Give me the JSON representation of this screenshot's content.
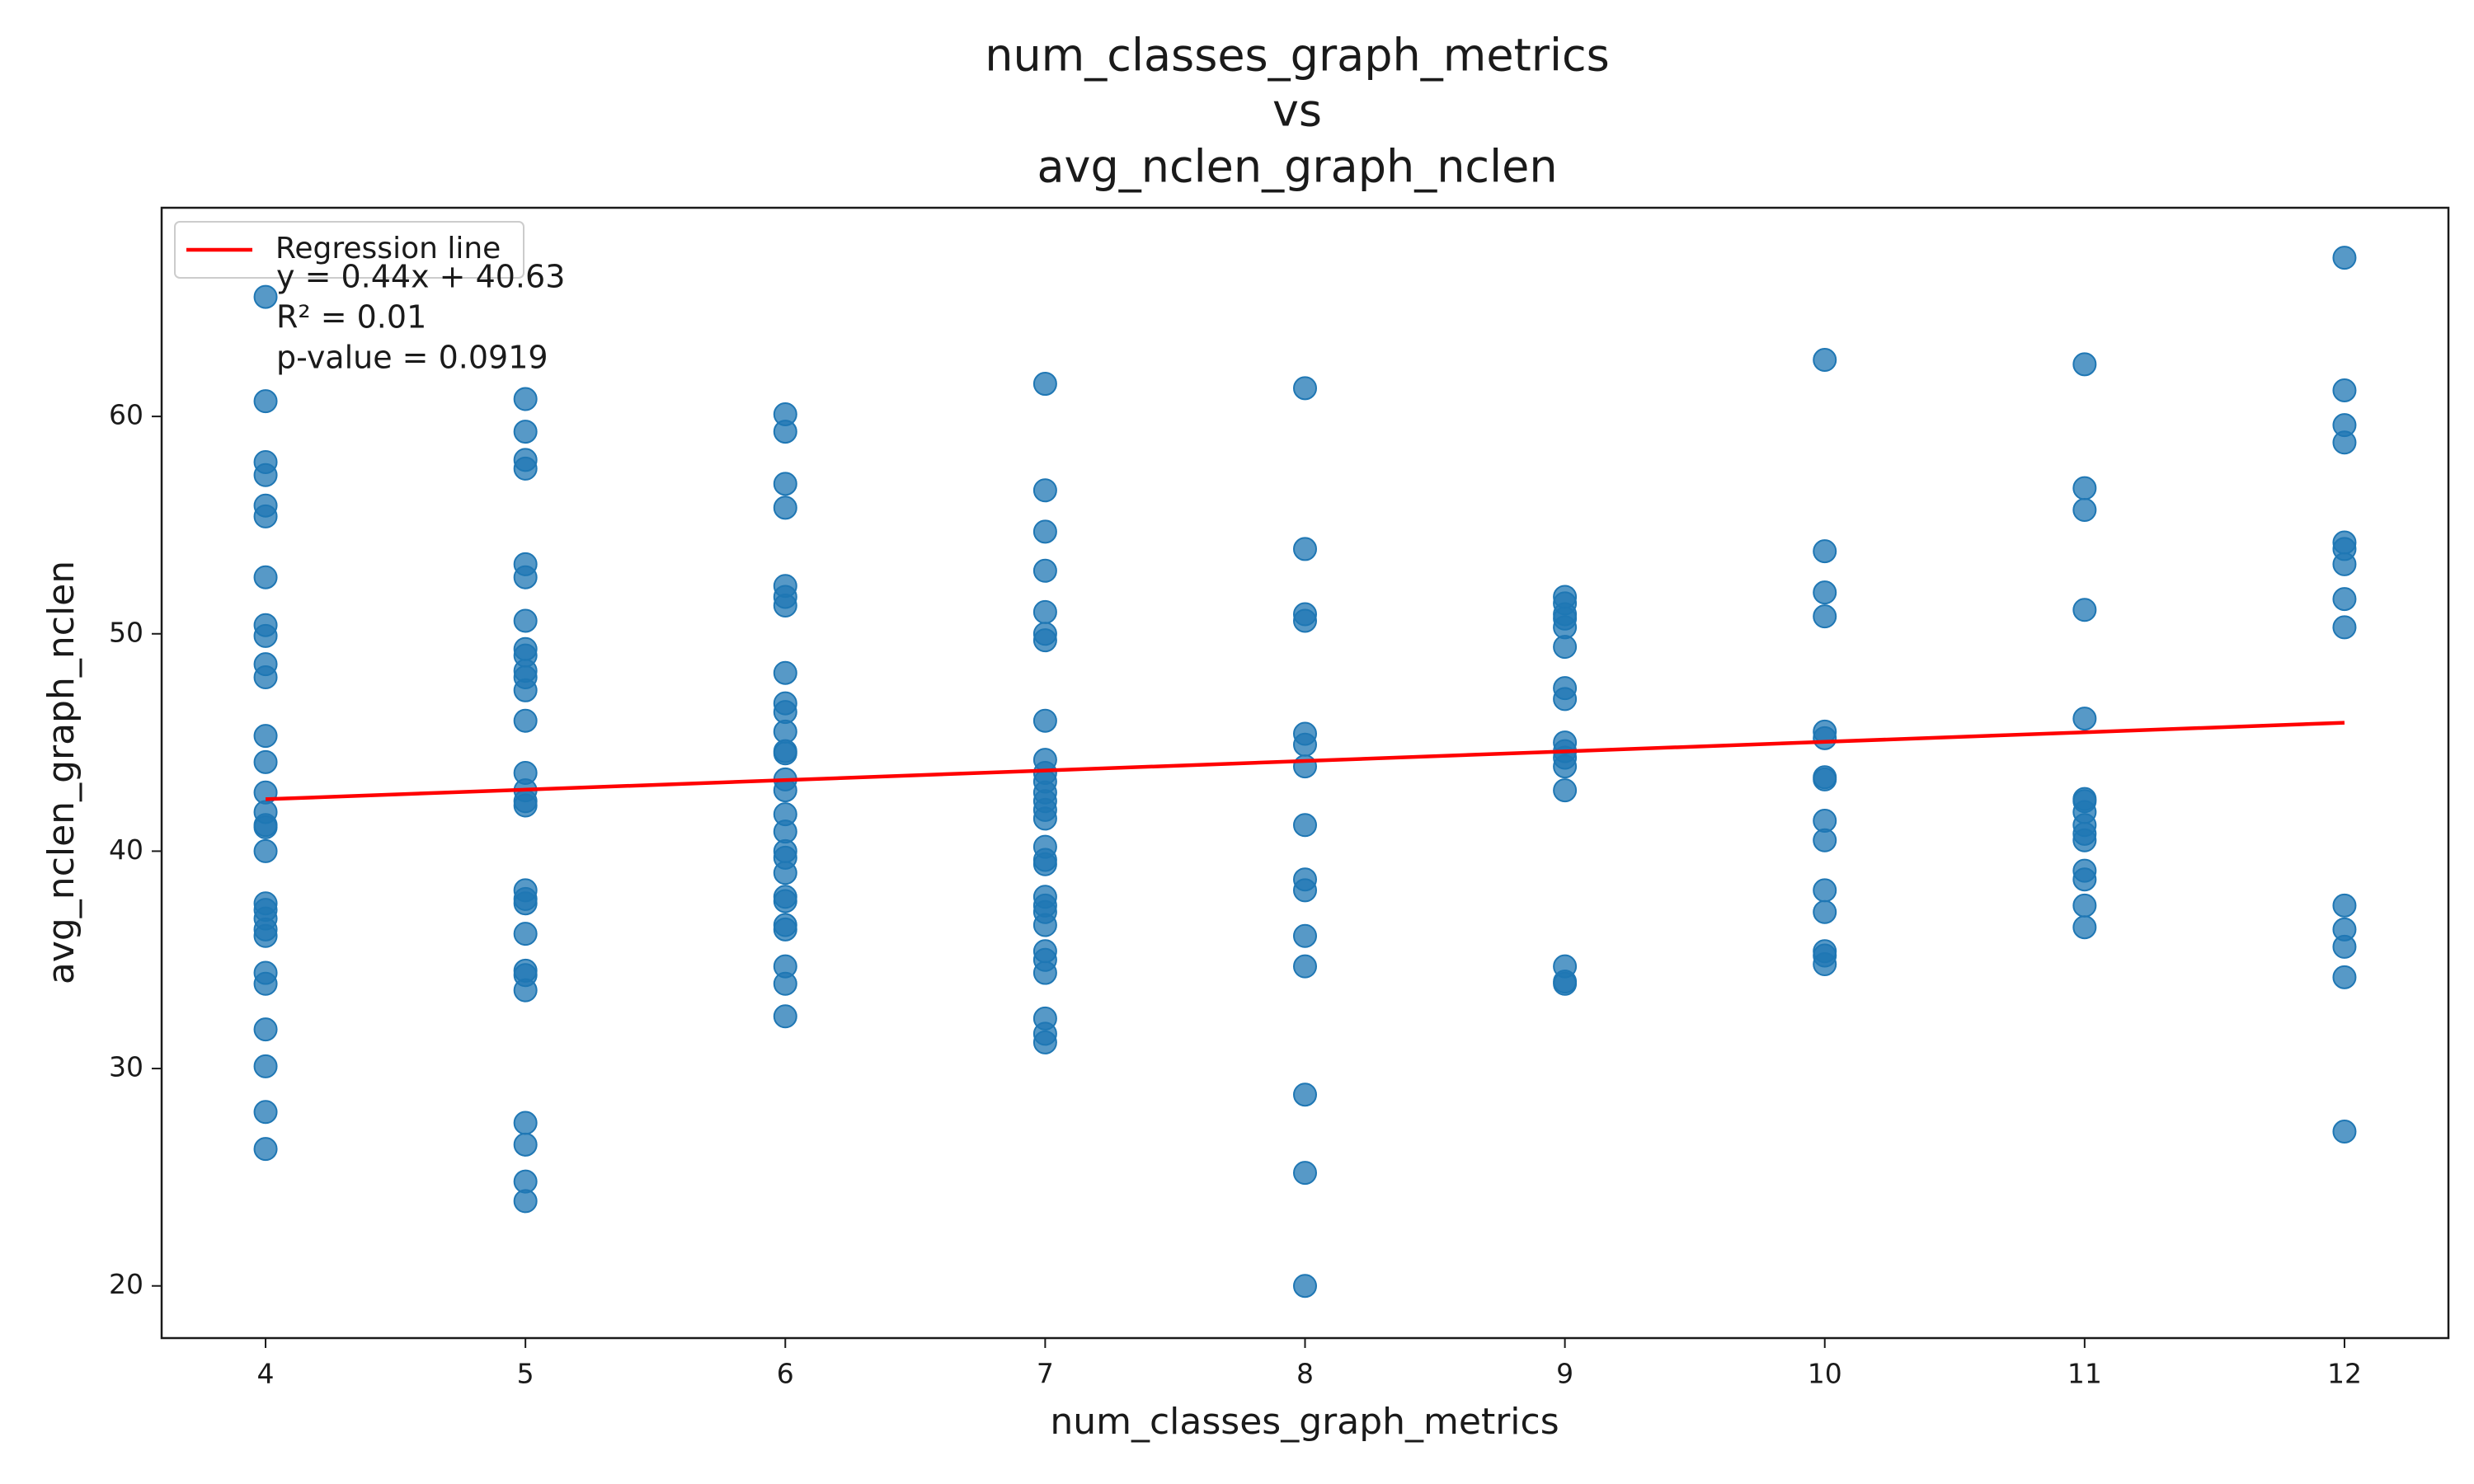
{
  "chart_data": {
    "type": "scatter",
    "title": [
      "num_classes_graph_metrics",
      "vs",
      "avg_nclen_graph_nclen"
    ],
    "xlabel": "num_classes_graph_metrics",
    "ylabel": "avg_nclen_graph_nclen",
    "xlim": [
      3.6,
      12.4
    ],
    "ylim": [
      17.6,
      69.6
    ],
    "xticks": [
      4,
      5,
      6,
      7,
      8,
      9,
      10,
      11,
      12
    ],
    "yticks": [
      20,
      30,
      40,
      50,
      60
    ],
    "grid": false,
    "legend": "upper left",
    "annotations": [
      "y = 0.44x + 40.63",
      "R² = 0.01",
      "p-value = 0.0919"
    ],
    "series": [
      {
        "type": "scatter",
        "color": "#1f77b4",
        "x": [
          4,
          4,
          4,
          4,
          4,
          4,
          4,
          4,
          4,
          4,
          4,
          4,
          4,
          4,
          4,
          4,
          4,
          4,
          4,
          4,
          4,
          4,
          4,
          4,
          4,
          4,
          4,
          4,
          4,
          5,
          5,
          5,
          5,
          5,
          5,
          5,
          5,
          5,
          5,
          5,
          5,
          5,
          5,
          5,
          5,
          5,
          5,
          5,
          5,
          5,
          5,
          5,
          5,
          5,
          5,
          5,
          5,
          6,
          6,
          6,
          6,
          6,
          6,
          6,
          6,
          6,
          6,
          6,
          6,
          6,
          6,
          6,
          6,
          6,
          6,
          6,
          6,
          6,
          6,
          6,
          6,
          6,
          6,
          6,
          7,
          7,
          7,
          7,
          7,
          7,
          7,
          7,
          7,
          7,
          7,
          7,
          7,
          7,
          7,
          7,
          7,
          7,
          7,
          7,
          7,
          7,
          7,
          7,
          7,
          7,
          7,
          7,
          8,
          8,
          8,
          8,
          8,
          8,
          8,
          8,
          8,
          8,
          8,
          8,
          8,
          8,
          8,
          9,
          9,
          9,
          9,
          9,
          9,
          9,
          9,
          9,
          9,
          9,
          9,
          9,
          9,
          9,
          9,
          10,
          10,
          10,
          10,
          10,
          10,
          10,
          10,
          10,
          10,
          10,
          10,
          10,
          10,
          10,
          11,
          11,
          11,
          11,
          11,
          11,
          11,
          11,
          11,
          11,
          11,
          11,
          11,
          11,
          11,
          12,
          12,
          12,
          12,
          12,
          12,
          12,
          12,
          12,
          12,
          12,
          12,
          12,
          12
        ],
        "values": [
          65.5,
          60.7,
          57.9,
          57.3,
          55.9,
          55.4,
          52.6,
          50.4,
          49.9,
          48.6,
          48.0,
          45.3,
          44.1,
          42.7,
          41.8,
          41.2,
          41.1,
          40.0,
          37.6,
          37.3,
          36.9,
          36.4,
          36.1,
          34.4,
          33.9,
          31.8,
          30.1,
          28.0,
          26.3,
          60.8,
          59.3,
          58.0,
          57.6,
          53.2,
          52.6,
          50.6,
          49.3,
          49.0,
          48.3,
          48.0,
          47.4,
          46.0,
          43.6,
          42.8,
          42.3,
          42.1,
          38.2,
          37.8,
          37.6,
          36.2,
          34.5,
          34.3,
          33.6,
          27.5,
          26.5,
          24.8,
          23.9,
          60.1,
          59.3,
          56.9,
          55.8,
          52.2,
          51.7,
          51.3,
          48.2,
          46.8,
          46.4,
          45.5,
          44.6,
          44.5,
          43.3,
          42.8,
          41.7,
          40.9,
          40.0,
          39.7,
          39.0,
          37.9,
          37.7,
          36.6,
          36.4,
          34.7,
          33.9,
          32.4,
          61.5,
          56.6,
          54.7,
          52.9,
          51.0,
          50.0,
          49.7,
          46.0,
          44.2,
          43.6,
          43.2,
          42.7,
          42.3,
          41.9,
          41.5,
          40.2,
          39.6,
          39.4,
          37.9,
          37.5,
          37.2,
          36.6,
          35.4,
          35.0,
          34.4,
          32.3,
          31.6,
          31.2,
          61.3,
          53.9,
          50.9,
          50.6,
          45.4,
          44.9,
          43.9,
          41.2,
          38.7,
          38.2,
          36.1,
          34.7,
          28.8,
          25.2,
          20.0,
          51.7,
          51.4,
          50.9,
          50.7,
          50.3,
          49.4,
          47.5,
          47.0,
          45.0,
          44.6,
          44.3,
          43.9,
          42.8,
          34.7,
          34.0,
          33.9,
          62.6,
          53.8,
          51.9,
          50.8,
          45.5,
          45.2,
          43.4,
          43.3,
          41.4,
          40.5,
          38.2,
          37.2,
          35.4,
          35.2,
          34.8,
          62.4,
          56.7,
          55.7,
          51.1,
          46.1,
          42.4,
          42.3,
          41.8,
          41.2,
          40.8,
          40.5,
          39.1,
          38.7,
          37.5,
          36.5,
          67.3,
          61.2,
          59.6,
          58.8,
          54.2,
          53.9,
          53.2,
          51.6,
          50.3,
          37.5,
          36.4,
          35.6,
          34.2,
          27.1
        ]
      },
      {
        "type": "line",
        "name": "Regression line",
        "color": "#ff0000",
        "x": [
          4,
          12
        ],
        "values": [
          42.39,
          45.91
        ]
      }
    ]
  }
}
